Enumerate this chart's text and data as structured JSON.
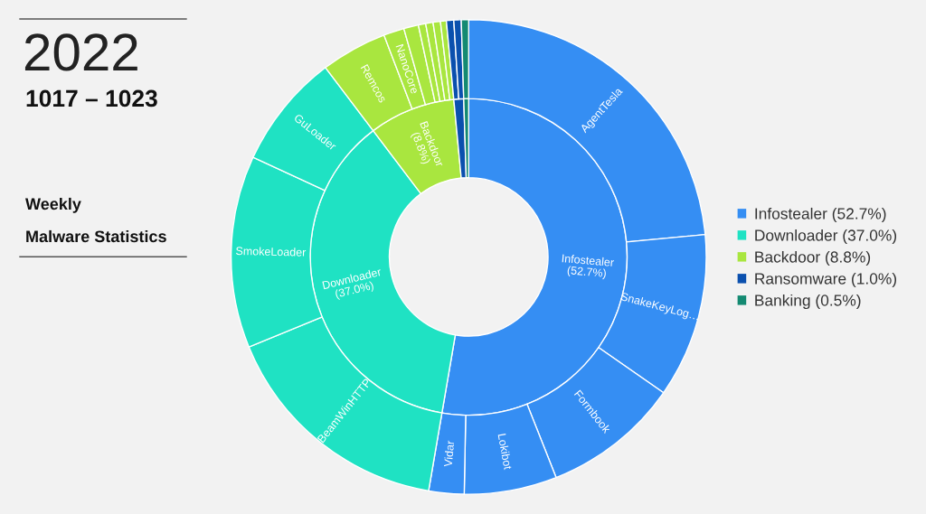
{
  "chart_data": {
    "type": "donut",
    "title": "2022",
    "subtitle": "1017 – 1023",
    "annotations": [
      "Weekly",
      "Malware Statistics"
    ],
    "legend": "right",
    "categories": [
      "Infostealer (52.7%)",
      "Downloader (37.0%)",
      "Backdoor (8.8%)",
      "Ransomware (1.0%)",
      "Banking (0.5%)",
      null,
      null,
      null,
      null,
      null,
      null,
      null,
      null,
      null,
      null,
      null,
      null,
      null,
      null,
      null,
      null,
      null,
      null
    ],
    "series": [
      {
        "values": [
          52.7,
          37.0,
          8.8,
          1.0,
          0.5,
          null,
          null,
          null,
          null,
          null,
          null,
          null,
          null,
          null,
          null,
          null,
          null,
          null,
          null,
          null,
          null,
          null,
          null
        ],
        "colors": [
          "#358ef3",
          "#1fe2c3",
          "#a9e63f",
          "#0b50ae",
          "#148a72",
          null,
          null,
          null,
          null,
          null,
          null,
          null,
          null,
          null,
          null,
          null,
          null,
          null,
          null,
          null,
          null,
          null,
          null
        ],
        "value_labels": [
          "Infostealer (52.7%)",
          "Downloader (37.0%)",
          "Backdoor (8.8%)",
          null,
          null,
          null,
          null,
          null,
          null,
          null,
          null,
          null,
          null,
          null,
          null,
          null,
          null,
          null,
          null,
          null,
          null,
          null,
          null
        ]
      },
      {
        "values": [
          null,
          null,
          null,
          null,
          null,
          23.5,
          11.2,
          9.3,
          6.3,
          2.4,
          16.1,
          13.1,
          7.8,
          4.5,
          1.4,
          1.0,
          0.5,
          0.5,
          0.5,
          0.4,
          0.5,
          0.5,
          0.5
        ],
        "colors": [
          null,
          null,
          null,
          null,
          null,
          "#358ef3",
          "#358ef3",
          "#358ef3",
          "#358ef3",
          "#358ef3",
          "#1fe2c3",
          "#1fe2c3",
          "#1fe2c3",
          "#a9e63f",
          "#a9e63f",
          "#a9e63f",
          "#a9e63f",
          "#a9e63f",
          "#a9e63f",
          "#a9e63f",
          "#0b50ae",
          "#0b50ae",
          "#148a72"
        ],
        "value_labels": [
          null,
          null,
          null,
          null,
          null,
          "AgentTesla",
          "SnakeKeyLog…",
          "Formbook",
          "Lokibot",
          "Vidar",
          "BeamWinHTTP",
          "SmokeLoader",
          "GuLoader",
          "Remcos",
          "NanoCore",
          null,
          null,
          null,
          null,
          null,
          null,
          null,
          null
        ]
      }
    ]
  }
}
